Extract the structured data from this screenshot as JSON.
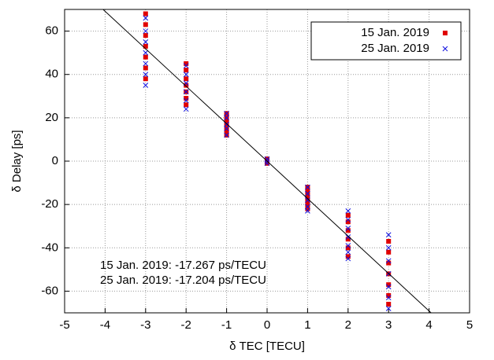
{
  "chart_data": {
    "type": "scatter",
    "x_label": "δ TEC [TECU]",
    "y_label": "δ Delay [ps]",
    "xlim": [
      -5,
      5
    ],
    "ylim": [
      -70,
      70
    ],
    "xticks": [
      -5,
      -4,
      -3,
      -2,
      -1,
      0,
      1,
      2,
      3,
      4,
      5
    ],
    "yticks": [
      -60,
      -40,
      -20,
      0,
      20,
      40,
      60
    ],
    "grid": true,
    "legend": "upper right",
    "series": [
      {
        "name": "15 Jan. 2019",
        "color": "#e00000",
        "marker": "square",
        "x": [
          -3,
          -3,
          -3,
          -3,
          -3,
          -3,
          -3,
          -2,
          -2,
          -2,
          -2,
          -2,
          -2,
          -2,
          -1,
          -1,
          -1,
          -1,
          -1,
          -1,
          -1,
          0,
          0,
          0,
          1,
          1,
          1,
          1,
          1,
          1,
          2,
          2,
          2,
          2,
          2,
          2,
          3,
          3,
          3,
          3,
          3,
          3,
          3
        ],
        "values": [
          38,
          43,
          48,
          53,
          58,
          63,
          68,
          26,
          29,
          32,
          35,
          38,
          42,
          45,
          12,
          14,
          16,
          18,
          19,
          21,
          22,
          0,
          1,
          -1,
          -12,
          -14,
          -16,
          -18,
          -20,
          -22,
          -25,
          -28,
          -32,
          -36,
          -40,
          -44,
          -37,
          -42,
          -47,
          -52,
          -57,
          -62,
          -66
        ]
      },
      {
        "name": "25 Jan. 2019",
        "color": "#1010e0",
        "marker": "x",
        "x": [
          -3,
          -3,
          -3,
          -3,
          -3,
          -3,
          -3,
          -2,
          -2,
          -2,
          -2,
          -2,
          -2,
          -1,
          -1,
          -1,
          -1,
          -1,
          0,
          0,
          0,
          1,
          1,
          1,
          1,
          1,
          2,
          2,
          2,
          2,
          2,
          2,
          2,
          3,
          3,
          3,
          3,
          3,
          3,
          3
        ],
        "values": [
          35,
          40,
          45,
          50,
          55,
          60,
          66,
          24,
          28,
          32,
          36,
          40,
          44,
          12,
          15,
          17,
          20,
          22,
          0,
          1,
          -1,
          -12,
          -15,
          -18,
          -21,
          -23,
          -23,
          -27,
          -31,
          -35,
          -39,
          -42,
          -45,
          -34,
          -40,
          -46,
          -52,
          -58,
          -63,
          -68
        ]
      },
      {
        "color": "#000000",
        "marker": "line",
        "x": [
          -4.05,
          4.05
        ],
        "values": [
          70,
          -70
        ]
      }
    ],
    "annotations": [
      "15 Jan. 2019: -17.267 ps/TECU",
      "25 Jan. 2019: -17.204 ps/TECU"
    ]
  }
}
